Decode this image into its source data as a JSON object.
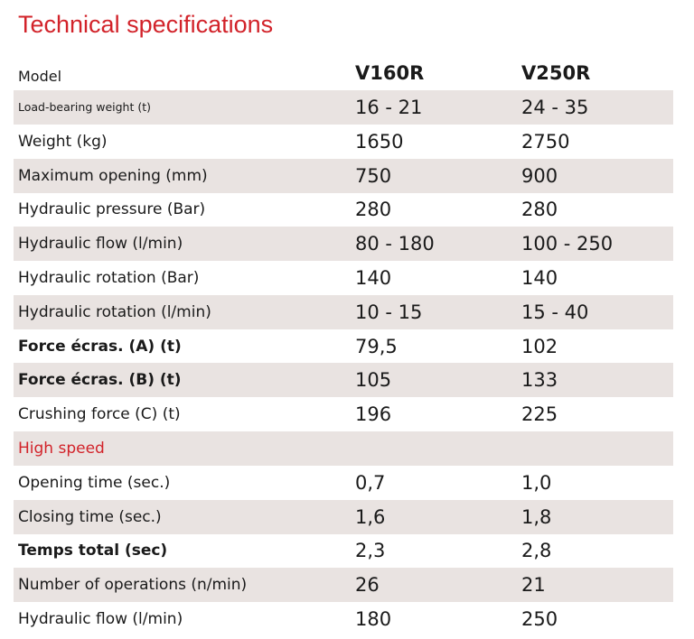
{
  "title": "Technical specifications",
  "table": {
    "header": [
      "Model",
      "V160R",
      "V250R"
    ],
    "rows": [
      [
        "Load-bearing weight (t)",
        "16 - 21",
        "24 - 35"
      ],
      [
        "Weight (kg)",
        "1650",
        "2750"
      ],
      [
        "Maximum opening (mm)",
        "750",
        "900"
      ],
      [
        "Hydraulic pressure (Bar)",
        "280",
        "280"
      ],
      [
        "Hydraulic flow (l/min)",
        "80 - 180",
        "100 - 250"
      ],
      [
        "Hydraulic rotation (Bar)",
        "140",
        "140"
      ],
      [
        "Hydraulic rotation (l/min)",
        "10 - 15",
        "15 - 40"
      ],
      [
        "Force écras. (A) (t)",
        "79,5",
        "102"
      ],
      [
        "Force écras. (B) (t)",
        "105",
        "133"
      ],
      [
        "Crushing force (C) (t)",
        "196",
        "225"
      ],
      [
        "High speed"
      ],
      [
        "Opening time (sec.)",
        "0,7",
        "1,0"
      ],
      [
        "Closing time (sec.)",
        "1,6",
        "1,8"
      ],
      [
        "Temps total (sec)",
        "2,3",
        "2,8"
      ],
      [
        "Number of operations (n/min)",
        "26",
        "21"
      ],
      [
        "Hydraulic flow (l/min)",
        "180",
        "250"
      ]
    ]
  }
}
